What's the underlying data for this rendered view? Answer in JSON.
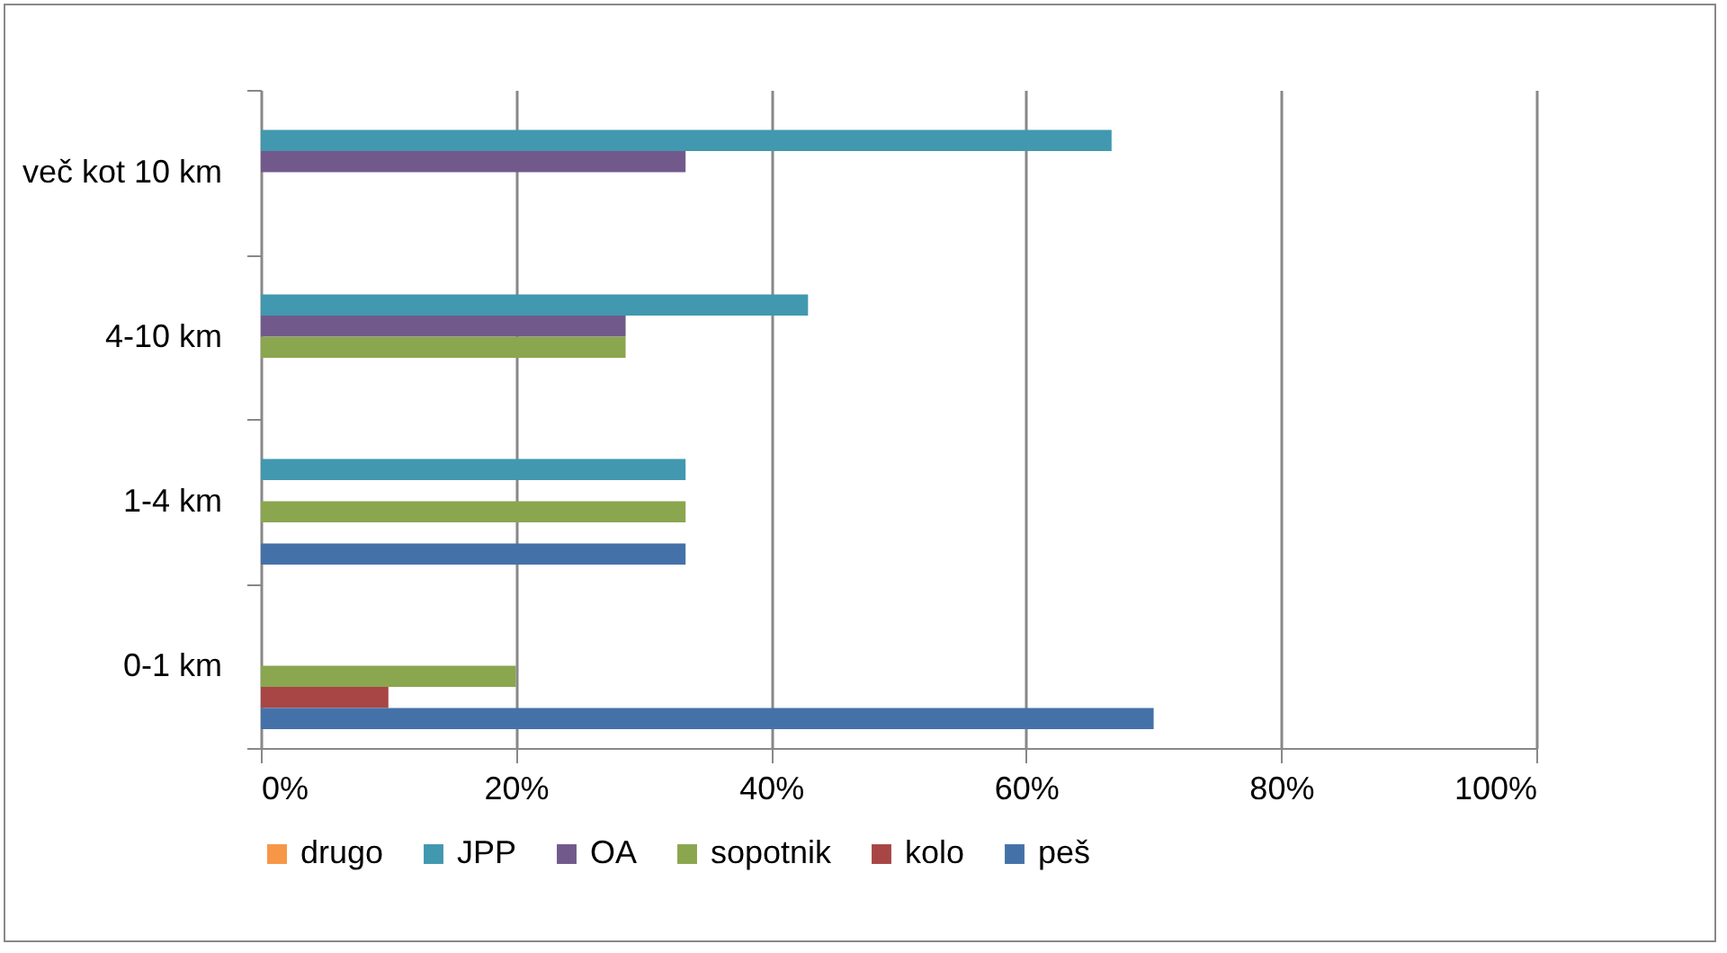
{
  "chart_data": {
    "type": "bar",
    "orientation": "horizontal",
    "categories": [
      "več kot 10 km",
      "4-10 km",
      "1-4 km",
      "0-1 km"
    ],
    "series": [
      {
        "name": "drugo",
        "color": "#f79646",
        "values": [
          null,
          null,
          null,
          null
        ]
      },
      {
        "name": "JPP",
        "color": "#4198af",
        "values": [
          66.7,
          42.9,
          33.3,
          null
        ]
      },
      {
        "name": "OA",
        "color": "#72598c",
        "values": [
          33.3,
          28.6,
          null,
          null
        ]
      },
      {
        "name": "sopotnik",
        "color": "#8aa64e",
        "values": [
          null,
          28.6,
          33.3,
          20
        ]
      },
      {
        "name": "kolo",
        "color": "#a84645",
        "values": [
          null,
          null,
          null,
          10
        ]
      },
      {
        "name": "peš",
        "color": "#4472a8",
        "values": [
          null,
          null,
          33.3,
          70
        ]
      }
    ],
    "xlim": [
      0,
      100
    ],
    "xticks": [
      {
        "value": 0,
        "label": "0%"
      },
      {
        "value": 20,
        "label": "20%"
      },
      {
        "value": 40,
        "label": "40%"
      },
      {
        "value": 60,
        "label": "60%"
      },
      {
        "value": 80,
        "label": "80%"
      },
      {
        "value": 100,
        "label": "100%"
      }
    ],
    "grid": "x",
    "legend": "bottom"
  }
}
